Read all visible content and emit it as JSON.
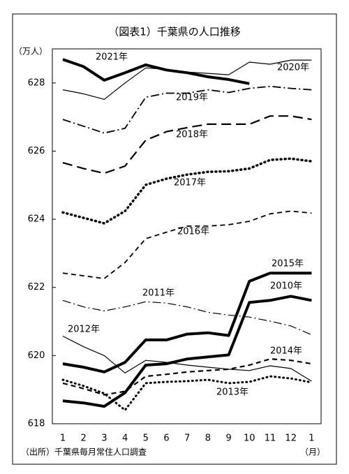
{
  "chart_data": {
    "type": "line",
    "title": "（図表1）千葉県の人口推移",
    "y_label": "（万人）",
    "x_label": "（月）",
    "source": "（出所）千葉県毎月常住人口調査",
    "categories": [
      "1",
      "2",
      "3",
      "4",
      "5",
      "6",
      "7",
      "8",
      "9",
      "10",
      "11",
      "12",
      "1"
    ],
    "ylim": [
      618,
      629
    ],
    "yticks": [
      618,
      620,
      622,
      624,
      626,
      628
    ],
    "series": [
      {
        "name": "2021年",
        "color": "#000000",
        "style": "solid",
        "width": 4,
        "values": [
          628.69,
          628.48,
          628.08,
          628.3,
          628.53,
          628.38,
          628.3,
          628.18,
          628.1,
          627.98,
          null,
          null,
          null
        ]
      },
      {
        "name": "2020年",
        "color": "#000000",
        "style": "solid",
        "width": 1.2,
        "values": [
          627.8,
          627.68,
          627.52,
          628.0,
          628.44,
          628.4,
          628.32,
          628.28,
          628.24,
          628.61,
          628.55,
          628.67,
          628.67
        ]
      },
      {
        "name": "2019年",
        "color": "#000000",
        "style": "dashdot",
        "width": 1.8,
        "values": [
          626.93,
          626.73,
          626.53,
          626.67,
          627.58,
          627.7,
          627.7,
          627.8,
          627.72,
          627.84,
          627.9,
          627.84,
          627.8
        ]
      },
      {
        "name": "2018年",
        "color": "#000000",
        "style": "longdash",
        "width": 2.2,
        "values": [
          625.66,
          625.49,
          625.35,
          625.56,
          626.32,
          626.57,
          626.69,
          626.79,
          626.79,
          626.79,
          627.03,
          627.03,
          626.93
        ]
      },
      {
        "name": "2017年",
        "color": "#000000",
        "style": "dotted",
        "width": 3.5,
        "values": [
          624.2,
          624.04,
          623.88,
          624.24,
          625.01,
          625.19,
          625.31,
          625.39,
          625.41,
          625.49,
          625.74,
          625.78,
          625.7
        ]
      },
      {
        "name": "2016年",
        "color": "#000000",
        "style": "dashed",
        "width": 1.8,
        "values": [
          622.42,
          622.34,
          622.26,
          622.73,
          623.43,
          623.62,
          623.8,
          623.8,
          623.84,
          623.94,
          624.16,
          624.24,
          624.18
        ]
      },
      {
        "name": "2015年",
        "color": "#000000",
        "style": "solid",
        "width": 4,
        "values": [
          619.76,
          619.66,
          619.52,
          619.8,
          620.46,
          620.46,
          620.63,
          620.67,
          620.59,
          622.18,
          622.42,
          622.42,
          622.42
        ]
      },
      {
        "name": "2010年",
        "color": "#000000",
        "style": "solid",
        "width": 4,
        "values": [
          618.67,
          618.61,
          618.51,
          618.91,
          619.72,
          619.76,
          619.9,
          619.96,
          620.02,
          621.56,
          621.62,
          621.74,
          621.62
        ]
      },
      {
        "name": "2011年",
        "color": "#000000",
        "style": "dashdot",
        "width": 1.2,
        "values": [
          621.62,
          621.43,
          621.31,
          621.43,
          621.58,
          621.54,
          621.43,
          621.27,
          621.19,
          621.13,
          621.01,
          620.87,
          620.61
        ]
      },
      {
        "name": "2012年",
        "color": "#000000",
        "style": "solid",
        "width": 1.2,
        "values": [
          620.57,
          620.26,
          620.0,
          619.49,
          619.86,
          619.8,
          619.72,
          619.66,
          619.6,
          619.56,
          619.7,
          619.62,
          619.25
        ]
      },
      {
        "name": "2014年",
        "color": "#000000",
        "style": "dashed",
        "width": 2.2,
        "values": [
          619.19,
          619.03,
          618.85,
          618.95,
          619.39,
          619.45,
          619.52,
          619.56,
          619.6,
          619.72,
          619.9,
          619.86,
          619.76
        ]
      },
      {
        "name": "2013年",
        "color": "#000000",
        "style": "dotted",
        "width": 3,
        "values": [
          619.29,
          619.11,
          618.89,
          618.4,
          619.19,
          619.23,
          619.25,
          619.29,
          619.19,
          619.23,
          619.39,
          619.33,
          619.21
        ]
      }
    ]
  }
}
